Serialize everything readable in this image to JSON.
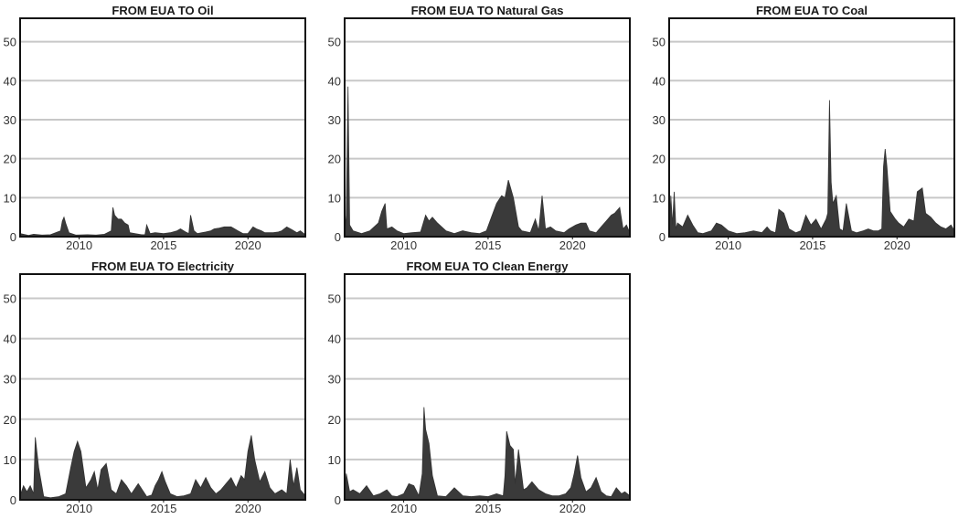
{
  "chart_data": [
    {
      "type": "area",
      "title": "FROM EUA TO Oil",
      "xlabel": "",
      "ylabel": "",
      "xlim": [
        2006.5,
        2023.4
      ],
      "ylim": [
        0,
        56
      ],
      "x_ticks": [
        "2010",
        "2015",
        "2020"
      ],
      "y_ticks": [
        "0",
        "10",
        "20",
        "30",
        "40",
        "50"
      ],
      "grid": true,
      "series": [
        {
          "x": [
            2006.5,
            2007.0,
            2007.3,
            2007.8,
            2008.3,
            2008.9,
            2009.0,
            2009.1,
            2009.2,
            2009.4,
            2009.8,
            2010.5,
            2011.0,
            2011.5,
            2011.9,
            2012.0,
            2012.1,
            2012.3,
            2012.5,
            2012.7,
            2012.9,
            2013.0,
            2013.3,
            2013.7,
            2013.9,
            2014.0,
            2014.2,
            2014.5,
            2015.0,
            2015.4,
            2015.8,
            2016.0,
            2016.3,
            2016.5,
            2016.6,
            2016.8,
            2017.0,
            2017.5,
            2017.8,
            2018.0,
            2018.3,
            2018.6,
            2019.0,
            2019.4,
            2019.7,
            2020.0,
            2020.3,
            2020.5,
            2020.8,
            2021.0,
            2021.5,
            2021.8,
            2022.0,
            2022.3,
            2022.6,
            2022.9,
            2023.1,
            2023.4
          ],
          "values": [
            0.8,
            0.3,
            0.6,
            0.4,
            0.5,
            1.5,
            4.0,
            5.0,
            3.5,
            1.0,
            0.4,
            0.5,
            0.4,
            0.6,
            1.5,
            7.5,
            5.5,
            4.5,
            4.5,
            3.5,
            3.0,
            1.0,
            0.8,
            0.5,
            0.5,
            3.0,
            0.8,
            1.0,
            0.8,
            1.0,
            1.5,
            2.0,
            1.2,
            0.8,
            5.5,
            1.5,
            0.8,
            1.2,
            1.5,
            2.0,
            2.2,
            2.5,
            2.5,
            1.5,
            0.8,
            0.8,
            2.5,
            2.0,
            1.5,
            1.0,
            1.0,
            1.2,
            1.5,
            2.5,
            1.8,
            1.0,
            1.5,
            0.5
          ]
        }
      ]
    },
    {
      "type": "area",
      "title": "FROM EUA TO Natural Gas",
      "xlabel": "",
      "ylabel": "",
      "xlim": [
        2006.5,
        2023.4
      ],
      "ylim": [
        0,
        56
      ],
      "x_ticks": [
        "2010",
        "2015",
        "2020"
      ],
      "y_ticks": [
        "0",
        "10",
        "20",
        "30",
        "40",
        "50"
      ],
      "grid": true,
      "series": [
        {
          "x": [
            2006.5,
            2006.6,
            2006.7,
            2006.8,
            2007.0,
            2007.5,
            2008.0,
            2008.5,
            2008.7,
            2008.9,
            2009.0,
            2009.3,
            2009.6,
            2010.0,
            2010.5,
            2011.0,
            2011.3,
            2011.5,
            2011.7,
            2012.0,
            2012.5,
            2013.0,
            2013.5,
            2014.0,
            2014.5,
            2014.9,
            2015.2,
            2015.5,
            2015.8,
            2016.0,
            2016.2,
            2016.5,
            2016.8,
            2017.0,
            2017.5,
            2017.8,
            2018.0,
            2018.2,
            2018.4,
            2018.7,
            2019.0,
            2019.5,
            2019.8,
            2020.2,
            2020.5,
            2020.8,
            2021.0,
            2021.4,
            2021.7,
            2022.0,
            2022.3,
            2022.5,
            2022.8,
            2023.0,
            2023.2,
            2023.4
          ],
          "values": [
            0,
            5.5,
            38.5,
            3.0,
            1.5,
            0.8,
            1.5,
            3.5,
            6.5,
            8.5,
            2.0,
            2.5,
            1.5,
            0.8,
            1.0,
            1.2,
            5.5,
            4.0,
            5.0,
            3.5,
            1.5,
            0.8,
            1.5,
            1.0,
            0.8,
            1.5,
            5.0,
            8.5,
            10.5,
            10.0,
            14.5,
            10.0,
            2.5,
            1.5,
            1.0,
            4.5,
            1.5,
            10.5,
            2.0,
            2.5,
            1.5,
            1.0,
            2.0,
            3.0,
            3.5,
            3.5,
            1.5,
            1.0,
            2.5,
            4.0,
            5.5,
            6.0,
            7.5,
            2.0,
            3.0,
            1.0
          ]
        }
      ]
    },
    {
      "type": "area",
      "title": "FROM EUA TO Coal",
      "xlabel": "",
      "ylabel": "",
      "xlim": [
        2006.5,
        2023.4
      ],
      "ylim": [
        0,
        56
      ],
      "x_ticks": [
        "2010",
        "2015",
        "2020"
      ],
      "y_ticks": [
        "0",
        "10",
        "20",
        "30",
        "40",
        "50"
      ],
      "grid": true,
      "series": [
        {
          "x": [
            2006.5,
            2006.6,
            2006.7,
            2006.8,
            2006.9,
            2007.0,
            2007.3,
            2007.6,
            2007.9,
            2008.2,
            2008.5,
            2009.0,
            2009.3,
            2009.6,
            2010.0,
            2010.5,
            2011.0,
            2011.5,
            2012.0,
            2012.3,
            2012.5,
            2012.8,
            2013.0,
            2013.3,
            2013.6,
            2014.0,
            2014.3,
            2014.6,
            2014.9,
            2015.2,
            2015.5,
            2015.8,
            2015.9,
            2016.0,
            2016.1,
            2016.2,
            2016.4,
            2016.6,
            2016.8,
            2017.0,
            2017.3,
            2017.6,
            2018.0,
            2018.3,
            2018.6,
            2018.9,
            2019.1,
            2019.2,
            2019.3,
            2019.4,
            2019.6,
            2019.9,
            2020.1,
            2020.4,
            2020.7,
            2021.0,
            2021.2,
            2021.5,
            2021.7,
            2022.0,
            2022.3,
            2022.6,
            2022.9,
            2023.2,
            2023.4
          ],
          "values": [
            0,
            10.5,
            3.0,
            11.5,
            2.0,
            3.5,
            2.5,
            5.5,
            3.0,
            1.0,
            0.8,
            1.5,
            3.5,
            3.0,
            1.5,
            0.8,
            1.0,
            1.5,
            1.0,
            2.5,
            1.5,
            1.0,
            7.0,
            6.0,
            2.0,
            1.0,
            1.5,
            5.5,
            3.0,
            4.5,
            2.0,
            4.5,
            6.0,
            35.0,
            14.0,
            8.5,
            10.5,
            2.0,
            1.5,
            8.5,
            1.5,
            1.0,
            1.5,
            2.0,
            1.5,
            1.5,
            2.0,
            18.0,
            22.5,
            18.0,
            6.5,
            4.5,
            3.5,
            2.5,
            4.5,
            4.0,
            11.5,
            12.5,
            6.0,
            5.0,
            3.5,
            2.5,
            2.0,
            3.0,
            1.5
          ]
        }
      ]
    },
    {
      "type": "area",
      "title": "FROM EUA TO Electricity",
      "xlabel": "",
      "ylabel": "",
      "xlim": [
        2006.5,
        2023.4
      ],
      "ylim": [
        0,
        56
      ],
      "x_ticks": [
        "2010",
        "2015",
        "2020"
      ],
      "y_ticks": [
        "0",
        "10",
        "20",
        "30",
        "40",
        "50"
      ],
      "grid": true,
      "series": [
        {
          "x": [
            2006.5,
            2006.7,
            2006.9,
            2007.1,
            2007.3,
            2007.4,
            2007.6,
            2007.9,
            2008.3,
            2008.8,
            2009.2,
            2009.5,
            2009.7,
            2009.9,
            2010.1,
            2010.4,
            2010.7,
            2010.9,
            2011.1,
            2011.3,
            2011.6,
            2011.9,
            2012.2,
            2012.5,
            2012.8,
            2013.1,
            2013.5,
            2014.0,
            2014.3,
            2014.5,
            2014.7,
            2014.9,
            2015.1,
            2015.4,
            2015.8,
            2016.2,
            2016.6,
            2016.9,
            2017.2,
            2017.5,
            2017.8,
            2018.1,
            2018.4,
            2018.7,
            2019.0,
            2019.3,
            2019.6,
            2019.8,
            2020.0,
            2020.2,
            2020.4,
            2020.7,
            2021.0,
            2021.3,
            2021.6,
            2022.0,
            2022.3,
            2022.5,
            2022.7,
            2022.9,
            2023.1,
            2023.4
          ],
          "values": [
            1.0,
            3.5,
            2.0,
            3.5,
            1.5,
            15.5,
            8.0,
            0.8,
            0.5,
            0.8,
            1.5,
            8.0,
            12.0,
            14.5,
            12.0,
            3.0,
            5.0,
            7.0,
            2.5,
            7.5,
            9.0,
            2.5,
            1.5,
            5.0,
            3.5,
            1.5,
            4.0,
            0.8,
            1.2,
            3.5,
            5.0,
            7.0,
            4.5,
            1.5,
            0.8,
            1.0,
            1.5,
            5.0,
            3.0,
            5.5,
            3.0,
            1.5,
            2.5,
            4.0,
            5.5,
            3.0,
            6.0,
            5.0,
            12.0,
            16.0,
            10.0,
            4.5,
            7.0,
            3.0,
            1.5,
            2.5,
            1.5,
            10.0,
            3.5,
            8.0,
            2.5,
            1.0
          ]
        }
      ]
    },
    {
      "type": "area",
      "title": "FROM EUA TO Clean Energy",
      "xlabel": "",
      "ylabel": "",
      "xlim": [
        2006.5,
        2023.4
      ],
      "ylim": [
        0,
        56
      ],
      "x_ticks": [
        "2010",
        "2015",
        "2020"
      ],
      "y_ticks": [
        "0",
        "10",
        "20",
        "30",
        "40",
        "50"
      ],
      "grid": true,
      "series": [
        {
          "x": [
            2006.5,
            2006.6,
            2006.8,
            2007.0,
            2007.4,
            2007.8,
            2008.2,
            2008.6,
            2009.0,
            2009.3,
            2009.6,
            2010.0,
            2010.3,
            2010.6,
            2010.9,
            2011.1,
            2011.2,
            2011.3,
            2011.5,
            2011.7,
            2012.0,
            2012.5,
            2013.0,
            2013.5,
            2014.0,
            2014.5,
            2015.0,
            2015.5,
            2015.9,
            2016.0,
            2016.1,
            2016.3,
            2016.5,
            2016.6,
            2016.8,
            2017.1,
            2017.3,
            2017.6,
            2018.0,
            2018.4,
            2018.8,
            2019.2,
            2019.6,
            2019.9,
            2020.1,
            2020.3,
            2020.5,
            2020.8,
            2021.1,
            2021.4,
            2021.7,
            2022.0,
            2022.3,
            2022.6,
            2022.9,
            2023.1,
            2023.4
          ],
          "values": [
            1.0,
            6.5,
            2.0,
            2.5,
            1.5,
            3.5,
            1.0,
            1.5,
            2.5,
            1.0,
            0.8,
            1.5,
            4.0,
            3.5,
            1.0,
            6.5,
            23.0,
            17.5,
            14.0,
            6.0,
            1.0,
            0.8,
            3.0,
            1.0,
            0.8,
            1.0,
            0.8,
            1.5,
            1.0,
            6.0,
            17.0,
            13.5,
            12.5,
            4.0,
            12.5,
            2.5,
            3.0,
            4.5,
            2.5,
            1.5,
            1.0,
            1.0,
            1.5,
            3.0,
            6.5,
            11.0,
            5.5,
            2.0,
            3.0,
            5.5,
            2.0,
            1.0,
            0.8,
            3.0,
            1.5,
            2.0,
            1.0
          ]
        }
      ]
    }
  ]
}
